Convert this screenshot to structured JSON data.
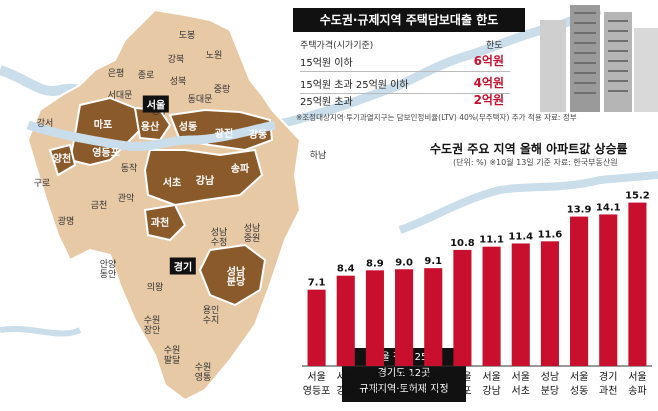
{
  "loan_box": {
    "title": "수도권·규제지역 주택담보대출 한도",
    "col_price": "주택가격(시가기준)",
    "col_limit": "한도",
    "rows": [
      {
        "label": "15억원 이하",
        "limit": "6억원"
      },
      {
        "label": "15억원 초과 25억원 이하",
        "limit": "4억원"
      },
      {
        "label": "25억원 초과",
        "limit": "2억원"
      }
    ],
    "note": "※조정대상지역·투기과열지구는 담보인정비율(LTV) 40%(무주택자) 추가 적용 자료: 정부"
  },
  "map": {
    "seoul_badge": "서울",
    "gyeonggi_badge": "경기",
    "callout": [
      "서울 전체 25곳",
      "경기도 12곳",
      "규제지역·토허제 지정"
    ],
    "labels": [
      {
        "id": "dobong",
        "text": "도봉"
      },
      {
        "id": "gangbuk",
        "text": "강북"
      },
      {
        "id": "nowon",
        "text": "노원"
      },
      {
        "id": "eunpyeong",
        "text": "은평"
      },
      {
        "id": "jongno",
        "text": "종로"
      },
      {
        "id": "seongbuk",
        "text": "성북"
      },
      {
        "id": "jungnang",
        "text": "중랑"
      },
      {
        "id": "seodaemun",
        "text": "서대문"
      },
      {
        "id": "dongdaemun",
        "text": "동대문"
      },
      {
        "id": "jung",
        "text": "중구"
      },
      {
        "id": "gangseo",
        "text": "강서"
      },
      {
        "id": "mapo",
        "text": "마포"
      },
      {
        "id": "yongsan",
        "text": "용산"
      },
      {
        "id": "seongdong",
        "text": "성동"
      },
      {
        "id": "gwangjin",
        "text": "광진"
      },
      {
        "id": "gangdong",
        "text": "강동"
      },
      {
        "id": "yangcheon",
        "text": "양천"
      },
      {
        "id": "yeongdeungpo",
        "text": "영등포"
      },
      {
        "id": "dongjak",
        "text": "동작"
      },
      {
        "id": "guro",
        "text": "구로"
      },
      {
        "id": "seocho",
        "text": "서초"
      },
      {
        "id": "gangnam",
        "text": "강남"
      },
      {
        "id": "songpa",
        "text": "송파"
      },
      {
        "id": "hanam",
        "text": "하남"
      },
      {
        "id": "gwanak",
        "text": "관악"
      },
      {
        "id": "geumcheon",
        "text": "금천"
      },
      {
        "id": "gwangmyeong",
        "text": "광명"
      },
      {
        "id": "gwacheon",
        "text": "과천"
      },
      {
        "id": "seongnam_sujeong",
        "text": "성남\n수정"
      },
      {
        "id": "seongnam_jungwon",
        "text": "성남\n중원"
      },
      {
        "id": "anyang_dongan",
        "text": "안양\n동안"
      },
      {
        "id": "seongnam_bundang",
        "text": "성남\n분당"
      },
      {
        "id": "uiwang",
        "text": "의왕"
      },
      {
        "id": "yongin_suji",
        "text": "용인\n수지"
      },
      {
        "id": "suwon_jangan",
        "text": "수원\n장안"
      },
      {
        "id": "suwon_paldal",
        "text": "수원\n팔달"
      },
      {
        "id": "suwon_yeongtong",
        "text": "수원\n영통"
      }
    ]
  },
  "chart_data": {
    "type": "bar",
    "title": "수도권 주요 지역 올해 아파트값 상승률",
    "unit_note": "(단위: %) ※10월 13일 기준 자료: 한국부동산원",
    "categories": [
      "서울\n영등포",
      "서울\n강동",
      "서울\n광진",
      "서울\n양천",
      "서울\n용산",
      "서울\n마포",
      "서울\n강남",
      "서울\n서초",
      "성남\n분당",
      "서울\n성동",
      "경기\n과천",
      "서울\n송파"
    ],
    "values": [
      7.1,
      8.4,
      8.9,
      9.0,
      9.1,
      10.8,
      11.1,
      11.4,
      11.6,
      13.9,
      14.1,
      15.2
    ],
    "value_labels": [
      "7.1",
      "8.4",
      "8.9",
      "9.0",
      "9.1",
      "10.8",
      "11.1",
      "11.4",
      "11.6",
      "13.9",
      "14.1",
      "15.2"
    ],
    "ylim": [
      0,
      16
    ],
    "grid": false,
    "colors": {
      "bar": "#c8102e"
    }
  },
  "colors": {
    "highlight": "#8b5a2b",
    "regulated": "#e8c9a6",
    "water": "#c9ddea",
    "accent": "#c8102e"
  }
}
